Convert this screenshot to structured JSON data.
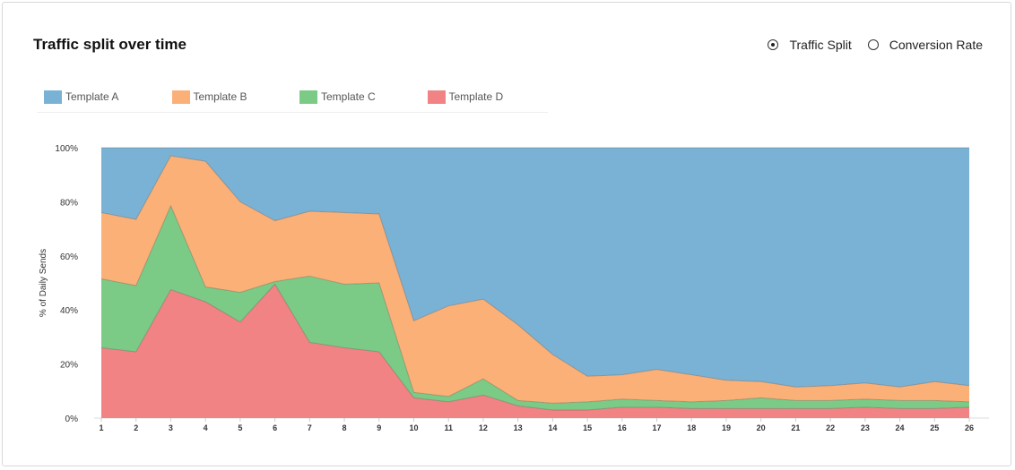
{
  "card": {
    "title": "Traffic split over time"
  },
  "toggle": {
    "options": [
      {
        "label": "Traffic Split",
        "selected": true
      },
      {
        "label": "Conversion Rate",
        "selected": false
      }
    ]
  },
  "chart_data": {
    "type": "area",
    "stacked": true,
    "ylabel": "% of Daily Sends",
    "ylim": [
      0,
      100
    ],
    "yticks": [
      "0%",
      "20%",
      "40%",
      "60%",
      "80%",
      "100%"
    ],
    "x": [
      1,
      2,
      3,
      4,
      5,
      6,
      7,
      8,
      9,
      10,
      11,
      12,
      13,
      14,
      15,
      16,
      17,
      18,
      19,
      20,
      21,
      22,
      23,
      24,
      25,
      26
    ],
    "legend_position": "top-left",
    "series": [
      {
        "name": "Template D",
        "color": "#f28384",
        "values": [
          26,
          24.5,
          47.5,
          43,
          35.5,
          49.5,
          28,
          26,
          24.5,
          7.5,
          6,
          8.5,
          4.5,
          3,
          3,
          4,
          4,
          3.5,
          3.5,
          3.5,
          3.5,
          3.5,
          4,
          3.5,
          3.5,
          4
        ]
      },
      {
        "name": "Template C",
        "color": "#7bcb86",
        "values": [
          25.5,
          24.5,
          31,
          5.5,
          11,
          1,
          24.5,
          23.5,
          25.5,
          2,
          2,
          6,
          2,
          2.5,
          3,
          3,
          2.5,
          2.5,
          3,
          4,
          3,
          3,
          3,
          3,
          3,
          2
        ]
      },
      {
        "name": "Template B",
        "color": "#fbb077",
        "values": [
          24.5,
          24.5,
          18.5,
          46.5,
          33.5,
          22.5,
          24,
          26.5,
          25.5,
          26.5,
          33.5,
          29.5,
          28,
          18,
          9.5,
          9,
          11.5,
          10,
          7.5,
          6,
          5,
          5.5,
          6,
          5,
          7,
          6
        ]
      },
      {
        "name": "Template A",
        "color": "#7ab2d6",
        "values": [
          24,
          26.5,
          3,
          5,
          20,
          27,
          23.5,
          24,
          24.5,
          64,
          58.5,
          56,
          65.5,
          76.5,
          84.5,
          84,
          82,
          84,
          86,
          86.5,
          88.5,
          88,
          87,
          88.5,
          86.5,
          88
        ]
      }
    ]
  }
}
